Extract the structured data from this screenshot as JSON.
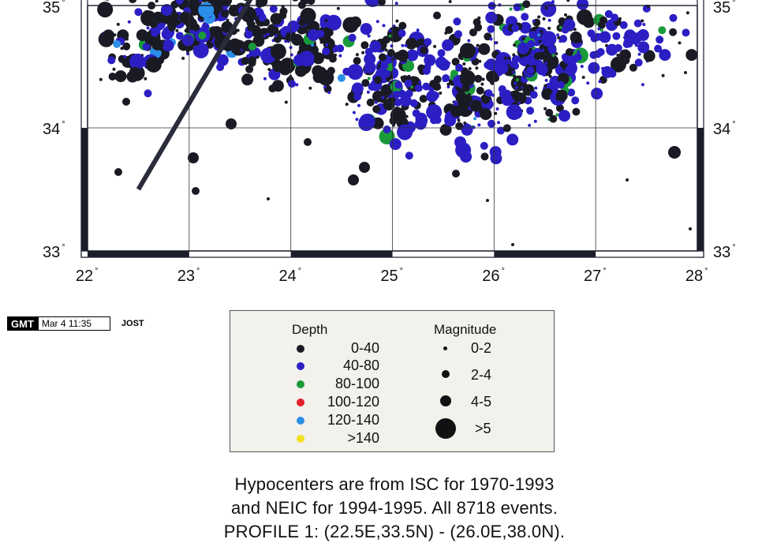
{
  "map": {
    "longitude_labels": [
      {
        "value": 22,
        "text": "22"
      },
      {
        "value": 23,
        "text": "23"
      },
      {
        "value": 24,
        "text": "24"
      },
      {
        "value": 25,
        "text": "25"
      },
      {
        "value": 26,
        "text": "26"
      },
      {
        "value": 27,
        "text": "27"
      },
      {
        "value": 28,
        "text": "28"
      }
    ],
    "latitude_labels": [
      {
        "value": 35,
        "text": "35"
      },
      {
        "value": 34,
        "text": "34"
      },
      {
        "value": 33,
        "text": "33"
      }
    ],
    "degree_symbol": "°",
    "lon_range": [
      22,
      28
    ],
    "lat_range": [
      33,
      35.05
    ],
    "profile_line": {
      "start": [
        22.5,
        33.5
      ],
      "end": [
        26.0,
        38.0
      ]
    },
    "colors": {
      "depth_0_40": "#1a1a24",
      "depth_40_80": "#2b1fc4",
      "depth_80_100": "#1a9a3a",
      "depth_100_120": "#e0202a",
      "depth_120_140": "#2b8fe8",
      "depth_gt_140": "#f0e020",
      "frame": "#1b1d2b",
      "grid": "#333333"
    }
  },
  "stamp": {
    "logo": "GMT",
    "date": "Mar  4 11:35",
    "user": "JOST"
  },
  "legend": {
    "depth_title": "Depth",
    "magnitude_title": "Magnitude",
    "depth_items": [
      {
        "label": "0-40",
        "color": "#1a1a24"
      },
      {
        "label": "40-80",
        "color": "#2b1fc4"
      },
      {
        "label": "80-100",
        "color": "#1a9a3a"
      },
      {
        "label": "100-120",
        "color": "#e0202a"
      },
      {
        "label": "120-140",
        "color": "#2b8fe8"
      },
      {
        "label": ">140",
        "color": "#f0e020"
      }
    ],
    "magnitude_items": [
      {
        "label": "0-2",
        "size": 1
      },
      {
        "label": "2-4",
        "size": 2
      },
      {
        "label": "4-5",
        "size": 3
      },
      {
        "label": ">5",
        "size": 4
      }
    ]
  },
  "caption": {
    "line1": "Hypocenters are from ISC for 1970-1993",
    "line2": "and NEIC for 1994-1995. All 8718 events.",
    "line3": "PROFILE 1: (22.5E,33.5N) - (26.0E,38.0N)."
  }
}
